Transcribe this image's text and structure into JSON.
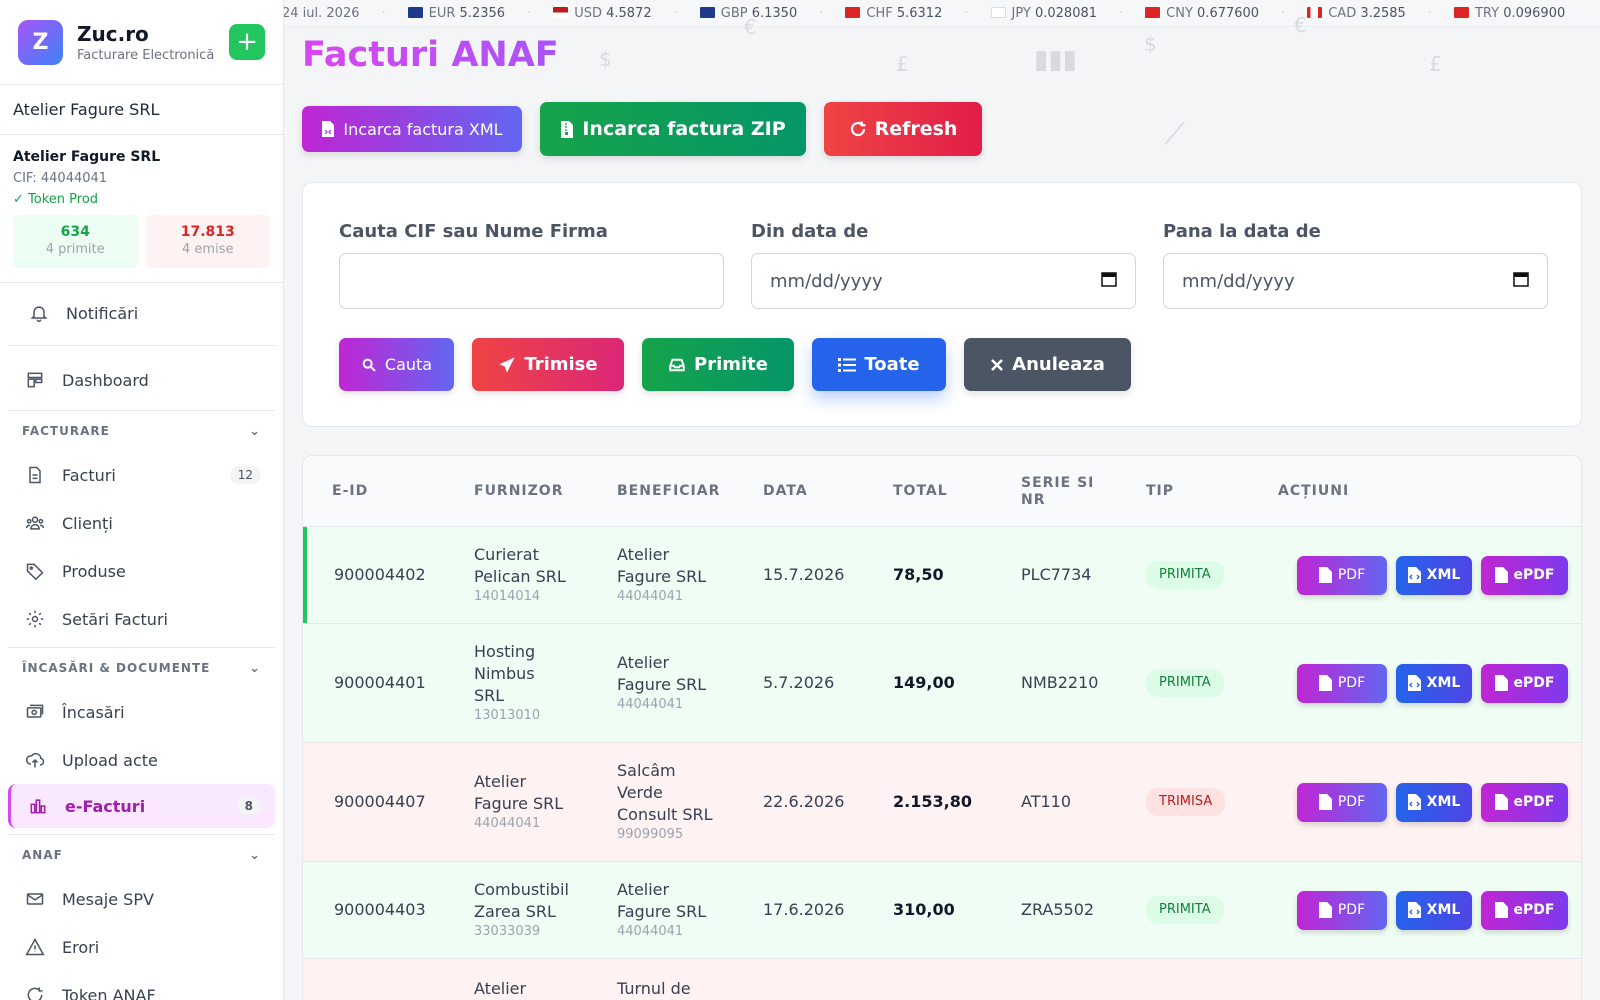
{
  "brand": {
    "logo_letter": "Z",
    "name": "Zuc.ro",
    "subtitle": "Facturare Electronică",
    "add_symbol": "+"
  },
  "company_selector": "Atelier Fagure SRL",
  "company": {
    "name": "Atelier Fagure SRL",
    "cif": "CIF: 44044041",
    "token": "✓ Token Prod",
    "received": {
      "count": "634",
      "label": "4 primite"
    },
    "issued": {
      "count": "17.813",
      "label": "4 emise"
    }
  },
  "nav": {
    "notifications": {
      "label": "Notificări",
      "icon": "bell-icon"
    },
    "dashboard": {
      "label": "Dashboard",
      "icon": "dashboard-icon"
    },
    "section_facturare": "FACTURARE",
    "facturi": {
      "label": "Facturi",
      "badge": "12",
      "icon": "document-icon"
    },
    "clienti": {
      "label": "Clienți",
      "icon": "users-icon"
    },
    "produse": {
      "label": "Produse",
      "icon": "tag-icon"
    },
    "setari": {
      "label": "Setări Facturi",
      "icon": "gear-icon"
    },
    "section_incasari": "ÎNCASĂRI & DOCUMENTE",
    "incasari": {
      "label": "Încasări",
      "icon": "cash-icon"
    },
    "upload": {
      "label": "Upload acte",
      "icon": "upload-icon"
    },
    "efacturi": {
      "label": "e-Facturi",
      "badge": "8",
      "icon": "chart-icon"
    },
    "section_anaf": "ANAF",
    "mesaje": {
      "label": "Mesaje SPV",
      "icon": "mail-icon"
    },
    "erori": {
      "label": "Erori",
      "icon": "warning-icon"
    },
    "token": {
      "label": "Token ANAF",
      "icon": "refresh-icon"
    }
  },
  "ticker": {
    "date": "24 iul. 2026",
    "items": [
      {
        "code": "EUR",
        "value": "5.2356",
        "flag": "eu"
      },
      {
        "code": "USD",
        "value": "4.5872",
        "flag": "us"
      },
      {
        "code": "GBP",
        "value": "6.1350",
        "flag": "gb"
      },
      {
        "code": "CHF",
        "value": "5.6312",
        "flag": "ch"
      },
      {
        "code": "JPY",
        "value": "0.028081",
        "flag": "jp"
      },
      {
        "code": "CNY",
        "value": "0.677600",
        "flag": "cn"
      },
      {
        "code": "CAD",
        "value": "3.2585",
        "flag": "ca"
      },
      {
        "code": "TRY",
        "value": "0.096900",
        "flag": "tr"
      }
    ]
  },
  "page": {
    "title": "Facturi ANAF",
    "btn_upload_xml": "Incarca factura XML",
    "btn_upload_zip": "Incarca factura ZIP",
    "btn_refresh": "Refresh"
  },
  "filters": {
    "search_label": "Cauta CIF sau Nume Firma",
    "search_value": "",
    "from_label": "Din data de",
    "from_placeholder": "mm/dd/yyyy",
    "to_label": "Pana la data de",
    "to_placeholder": "mm/dd/yyyy",
    "btn_cauta": "Cauta",
    "btn_trimise": "Trimise",
    "btn_primite": "Primite",
    "btn_toate": "Toate",
    "btn_anuleaza": "Anuleaza"
  },
  "table": {
    "headers": {
      "eid": "E-ID",
      "furnizor": "FURNIZOR",
      "beneficiar": "BENEFICIAR",
      "data": "DATA",
      "total": "TOTAL",
      "serie_l1": "SERIE SI",
      "serie_l2": "NR",
      "tip": "TIP",
      "actiuni": "ACȚIUNI"
    },
    "action_labels": {
      "pdf": "PDF",
      "xml": "XML",
      "epdf": "ePDF"
    },
    "rows": [
      {
        "eid": "900004402",
        "furnizor_lines": [
          "Curierat",
          "Pelican SRL"
        ],
        "furnizor_cif": "14014014",
        "beneficiar_lines": [
          "Atelier",
          "Fagure SRL"
        ],
        "beneficiar_cif": "44044041",
        "data": "15.7.2026",
        "total": "78,50",
        "serie": "PLC7734",
        "tip": "PRIMITA"
      },
      {
        "eid": "900004401",
        "furnizor_lines": [
          "Hosting",
          "Nimbus",
          "SRL"
        ],
        "furnizor_cif": "13013010",
        "beneficiar_lines": [
          "Atelier",
          "Fagure SRL"
        ],
        "beneficiar_cif": "44044041",
        "data": "5.7.2026",
        "total": "149,00",
        "serie": "NMB2210",
        "tip": "PRIMITA"
      },
      {
        "eid": "900004407",
        "furnizor_lines": [
          "Atelier",
          "Fagure SRL"
        ],
        "furnizor_cif": "44044041",
        "beneficiar_lines": [
          "Salcâm",
          "Verde",
          "Consult SRL"
        ],
        "beneficiar_cif": "99099095",
        "data": "22.6.2026",
        "total": "2.153,80",
        "serie": "AT110",
        "tip": "TRIMISA"
      },
      {
        "eid": "900004403",
        "furnizor_lines": [
          "Combustibil",
          "Zarea SRL"
        ],
        "furnizor_cif": "33033039",
        "beneficiar_lines": [
          "Atelier",
          "Fagure SRL"
        ],
        "beneficiar_cif": "44044041",
        "data": "17.6.2026",
        "total": "310,00",
        "serie": "ZRA5502",
        "tip": "PRIMITA"
      },
      {
        "eid": "",
        "furnizor_lines": [
          "Atelier"
        ],
        "furnizor_cif": "",
        "beneficiar_lines": [
          "Turnul de"
        ],
        "beneficiar_cif": "",
        "data": "",
        "total": "",
        "serie": "",
        "tip": ""
      }
    ]
  }
}
